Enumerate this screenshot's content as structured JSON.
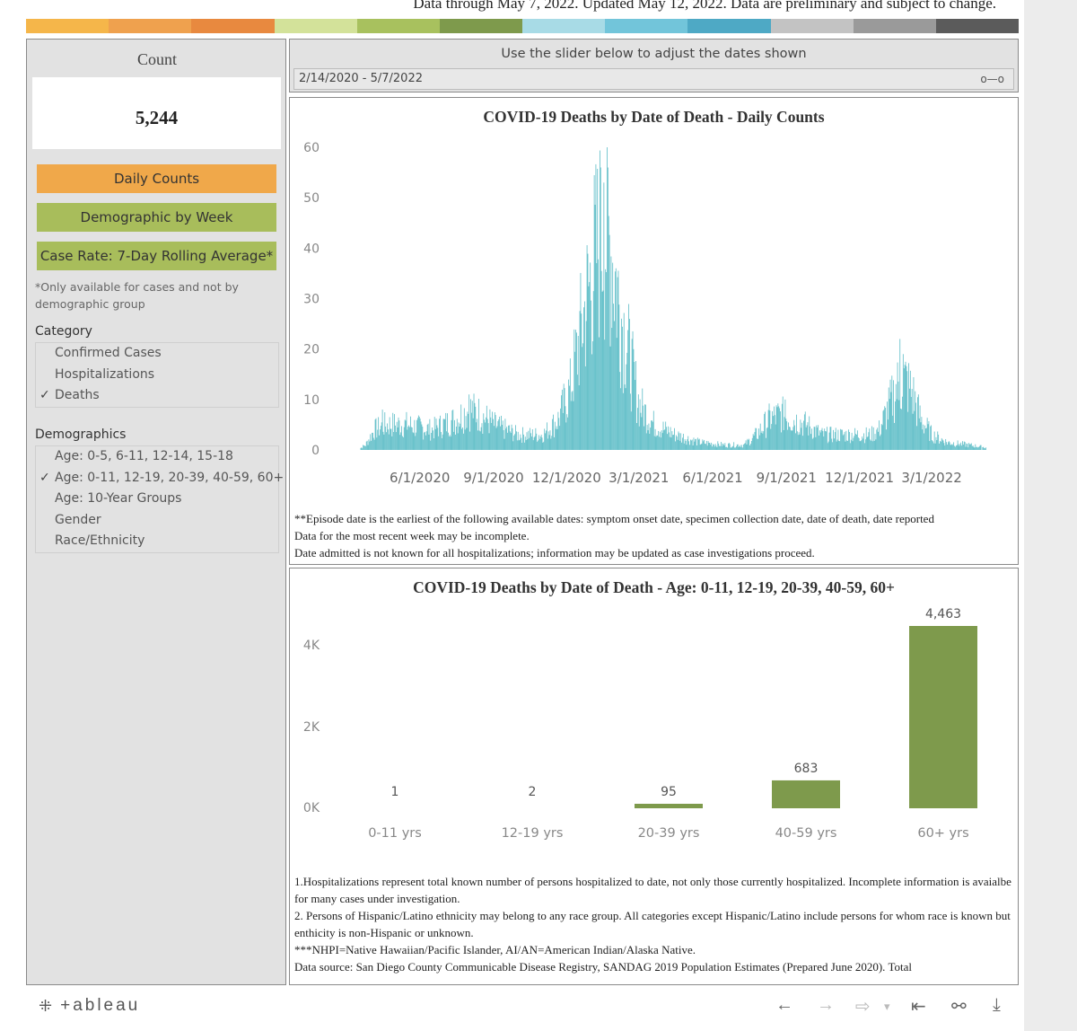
{
  "header": {
    "notice": "Data through May 7, 2022. Updated May 12, 2022. Data are preliminary and subject to change.",
    "strip_colors": [
      "#f5b64a",
      "#efa14e",
      "#e8893f",
      "#d3e29a",
      "#a8c15e",
      "#7e9a4c",
      "#a8dbe6",
      "#72c5da",
      "#4ea9c5",
      "#c3c3c3",
      "#9a9a9a",
      "#5b5b5b"
    ]
  },
  "sidebar": {
    "count_label": "Count",
    "count_value": "5,244",
    "buttons": [
      {
        "label": "Daily Counts",
        "color": "#f0a84a"
      },
      {
        "label": "Demographic by Week",
        "color": "#a8bd5b"
      },
      {
        "label": "Case Rate: 7-Day Rolling Average*",
        "color": "#a8bd5b"
      }
    ],
    "note": "*Only available for cases and not by demographic group",
    "category_title": "Category",
    "category_options": [
      {
        "label": "Confirmed Cases",
        "check": ""
      },
      {
        "label": "Hospitalizations",
        "check": ""
      },
      {
        "label": "Deaths",
        "check": "✓"
      }
    ],
    "demographics_title": "Demographics",
    "demographic_options": [
      {
        "label": "Age: 0-5, 6-11, 12-14, 15-18",
        "check": ""
      },
      {
        "label": "Age: 0-11, 12-19, 20-39, 40-59, 60+",
        "check": "✓"
      },
      {
        "label": "Age: 10-Year Groups",
        "check": ""
      },
      {
        "label": "Gender",
        "check": ""
      },
      {
        "label": "Race/Ethnicity",
        "check": ""
      }
    ]
  },
  "slider": {
    "label": "Use the slider below to adjust the dates shown",
    "range": "2/14/2020 - 5/7/2022"
  },
  "panels": {
    "daily_notes": [
      "**Episode date is the earliest of the following available dates: symptom onset date, specimen collection date, date of death, date reported",
      "Data for the most recent week may be incomplete.",
      "Date admitted is not known for all hospitalizations; information may be updated as case investigations proceed."
    ],
    "age_notes": [
      "1.Hospitalizations represent total known number of persons hospitalized to date, not only those currently hospitalized. Incomplete information is avaialbe for many cases under investigation.",
      "2. Persons of Hispanic/Latino ethnicity may belong to any race group. All categories except Hispanic/Latino include persons for whom race is known but enthicity is non-Hispanic or unknown.",
      "***NHPI=Native Hawaiian/Pacific Islander, AI/AN=American Indian/Alaska Native.",
      "Data source: San Diego County Communicable Disease Registry, SANDAG 2019 Population Estimates (Prepared June 2020). Total"
    ]
  },
  "chart_data": [
    {
      "type": "bar",
      "title": "COVID-19  Deaths by Date of Death - Daily Counts",
      "color": "#5bbcc6",
      "xlabel": "",
      "ylabel": "",
      "ylim": [
        0,
        60
      ],
      "y_ticks": [
        0,
        10,
        20,
        30,
        40,
        50,
        60
      ],
      "x_range": [
        "2020-03-15",
        "2022-05-07"
      ],
      "x_ticks": [
        {
          "date": "2020-06-01",
          "label": "6/1/2020"
        },
        {
          "date": "2020-09-01",
          "label": "9/1/2020"
        },
        {
          "date": "2020-12-01",
          "label": "12/1/2020"
        },
        {
          "date": "2021-03-01",
          "label": "3/1/2021"
        },
        {
          "date": "2021-06-01",
          "label": "6/1/2021"
        },
        {
          "date": "2021-09-01",
          "label": "9/1/2021"
        },
        {
          "date": "2021-12-01",
          "label": "12/1/2021"
        },
        {
          "date": "2022-03-01",
          "label": "3/1/2022"
        }
      ],
      "trend": [
        [
          "2020-03-15",
          0
        ],
        [
          "2020-03-25",
          1
        ],
        [
          "2020-04-05",
          4
        ],
        [
          "2020-04-20",
          5
        ],
        [
          "2020-05-15",
          5
        ],
        [
          "2020-06-15",
          4
        ],
        [
          "2020-07-15",
          6
        ],
        [
          "2020-08-01",
          8
        ],
        [
          "2020-08-15",
          7
        ],
        [
          "2020-09-01",
          5
        ],
        [
          "2020-10-01",
          3
        ],
        [
          "2020-11-01",
          3
        ],
        [
          "2020-11-20",
          6
        ],
        [
          "2020-12-05",
          12
        ],
        [
          "2020-12-20",
          25
        ],
        [
          "2021-01-05",
          38
        ],
        [
          "2021-01-15",
          44
        ],
        [
          "2021-01-25",
          40
        ],
        [
          "2021-02-05",
          28
        ],
        [
          "2021-02-20",
          16
        ],
        [
          "2021-03-01",
          9
        ],
        [
          "2021-03-20",
          5
        ],
        [
          "2021-04-15",
          3
        ],
        [
          "2021-05-15",
          1.5
        ],
        [
          "2021-06-15",
          1
        ],
        [
          "2021-07-10",
          1
        ],
        [
          "2021-07-25",
          3
        ],
        [
          "2021-08-10",
          6
        ],
        [
          "2021-08-25",
          7
        ],
        [
          "2021-09-10",
          6
        ],
        [
          "2021-09-25",
          5
        ],
        [
          "2021-10-15",
          3
        ],
        [
          "2021-11-15",
          3
        ],
        [
          "2021-12-15",
          3
        ],
        [
          "2021-12-25",
          4
        ],
        [
          "2022-01-05",
          8
        ],
        [
          "2022-01-15",
          12
        ],
        [
          "2022-01-25",
          14
        ],
        [
          "2022-02-05",
          11
        ],
        [
          "2022-02-15",
          6
        ],
        [
          "2022-03-01",
          3
        ],
        [
          "2022-03-20",
          1.5
        ],
        [
          "2022-04-15",
          1
        ],
        [
          "2022-05-07",
          0.5
        ]
      ],
      "peaks": [
        {
          "date": "2021-01-12",
          "value": 56
        },
        {
          "date": "2021-01-16",
          "value": 53
        },
        {
          "date": "2020-08-01",
          "value": 11
        },
        {
          "date": "2020-04-15",
          "value": 8
        },
        {
          "date": "2021-08-30",
          "value": 10
        },
        {
          "date": "2022-01-20",
          "value": 22
        },
        {
          "date": "2022-01-24",
          "value": 19
        }
      ]
    },
    {
      "type": "bar",
      "title": "COVID-19  Deaths by Date of Death - Age: 0-11, 12-19, 20-39, 40-59, 60+",
      "color": "#7e9a4c",
      "xlabel": "",
      "ylabel": "",
      "ylim": [
        0,
        4463
      ],
      "y_ticks": [
        {
          "value": 0,
          "label": "0K"
        },
        {
          "value": 2000,
          "label": "2K"
        },
        {
          "value": 4000,
          "label": "4K"
        }
      ],
      "categories": [
        "0-11 yrs",
        "12-19 yrs",
        "20-39 yrs",
        "40-59 yrs",
        "60+ yrs"
      ],
      "values": [
        1,
        2,
        95,
        683,
        4463
      ],
      "value_labels": [
        "1",
        "2",
        "95",
        "683",
        "4,463"
      ]
    }
  ],
  "footer": {
    "logo": "+ableau",
    "controls": [
      {
        "glyph": "←",
        "name": "undo-icon",
        "dim": false
      },
      {
        "glyph": "→",
        "name": "redo-icon",
        "dim": true
      },
      {
        "glyph": "⇨",
        "name": "revert-icon",
        "dim": true
      },
      {
        "glyph": "▾",
        "name": "revert-menu-icon",
        "dim": true
      },
      {
        "glyph": "⇤",
        "name": "reset-icon",
        "dim": false
      },
      {
        "glyph": "⚯",
        "name": "share-icon",
        "dim": false
      },
      {
        "glyph": "⤓",
        "name": "download-icon",
        "dim": false
      }
    ]
  }
}
